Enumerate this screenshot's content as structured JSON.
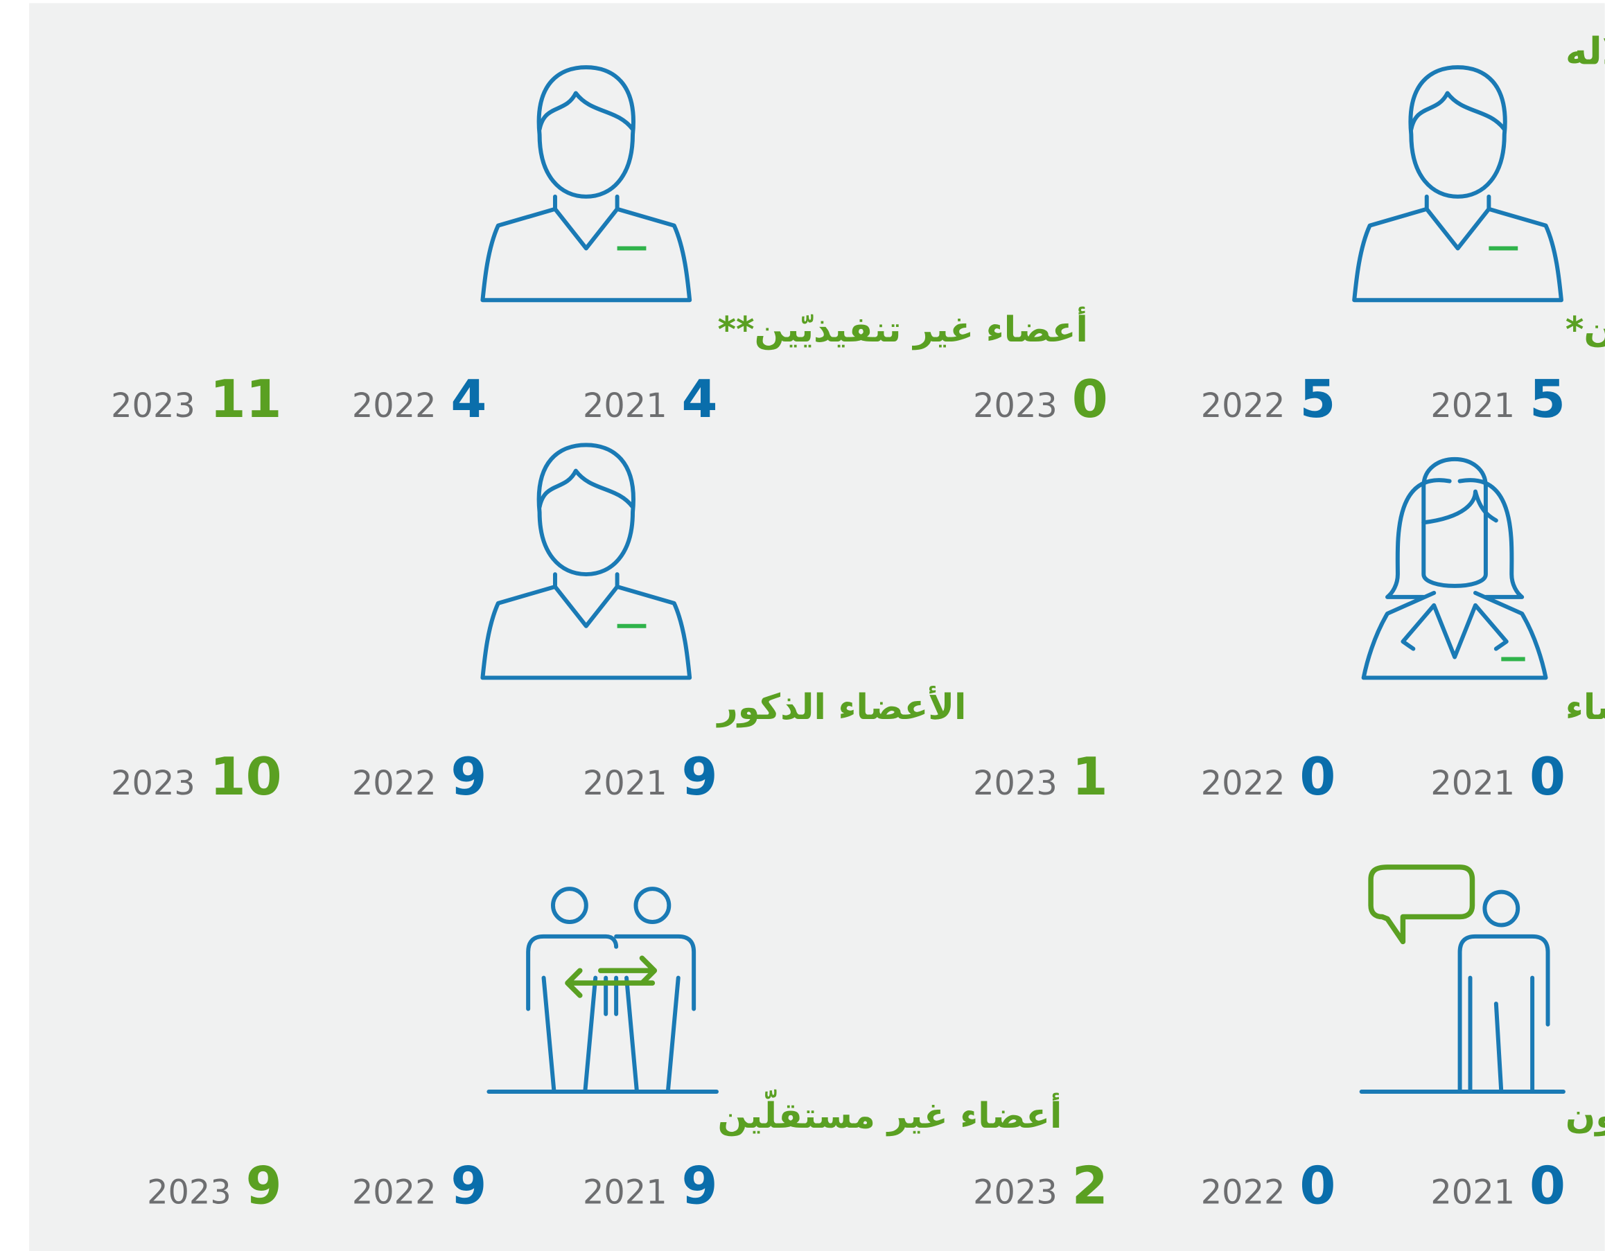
{
  "title": "تنوّع مجلس الإدارة واستقلاله",
  "cards": [
    {
      "label": "أعضاء تنفيذيّون*",
      "stats": [
        {
          "year": "2021",
          "value": 5
        },
        {
          "year": "2022",
          "value": 5
        },
        {
          "year": "2023",
          "value": 0
        }
      ]
    },
    {
      "label": "أعضاء غير تنفيذيّين**",
      "stats": [
        {
          "year": "2021",
          "value": 4
        },
        {
          "year": "2022",
          "value": 4
        },
        {
          "year": "2023",
          "value": 11
        }
      ]
    },
    {
      "label": "الأعضاء النساء",
      "stats": [
        {
          "year": "2021",
          "value": 0
        },
        {
          "year": "2022",
          "value": 0
        },
        {
          "year": "2023",
          "value": 1
        }
      ]
    },
    {
      "label": "الأعضاء الذكور",
      "stats": [
        {
          "year": "2021",
          "value": 9
        },
        {
          "year": "2022",
          "value": 9
        },
        {
          "year": "2023",
          "value": 10
        }
      ]
    },
    {
      "label": "أعضاء مستقلّون",
      "stats": [
        {
          "year": "2021",
          "value": 0
        },
        {
          "year": "2022",
          "value": 0
        },
        {
          "year": "2023",
          "value": 2
        }
      ]
    },
    {
      "label": "أعضاء غير مستقلّين",
      "stats": [
        {
          "year": "2021",
          "value": 9
        },
        {
          "year": "2022",
          "value": 9
        },
        {
          "year": "2023",
          "value": 9
        }
      ]
    }
  ]
}
